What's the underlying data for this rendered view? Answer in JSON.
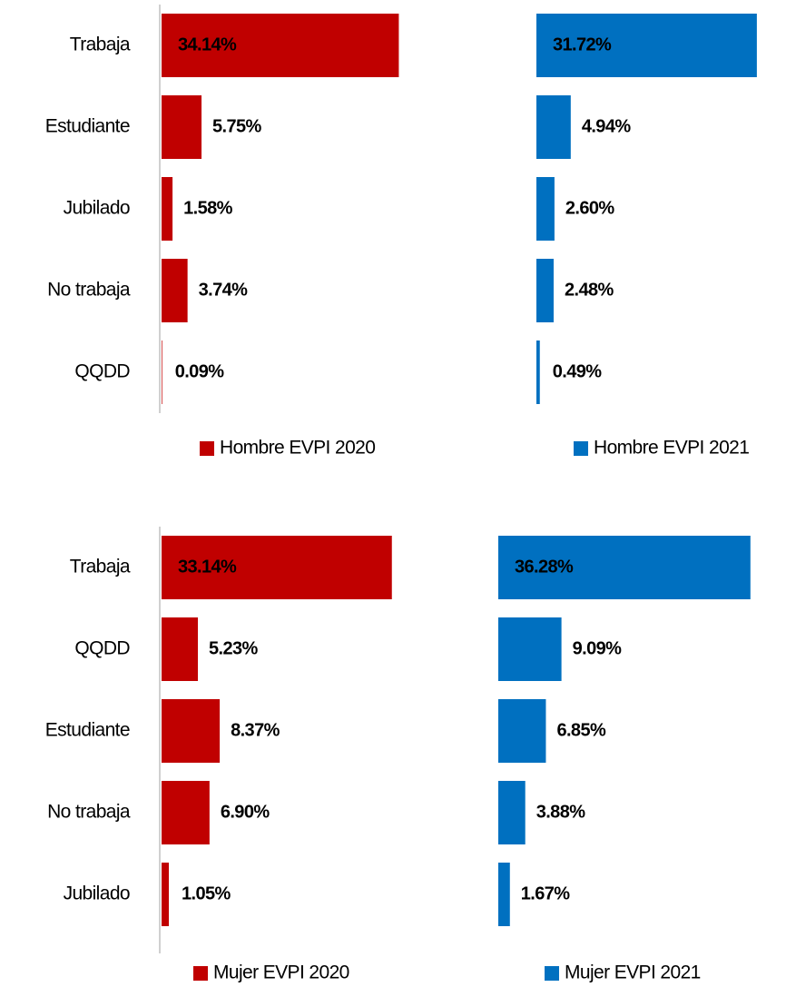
{
  "chart_data": [
    {
      "type": "bar",
      "orientation": "horizontal",
      "categories": [
        "Trabaja",
        "Estudiante",
        "Jubilado",
        "No trabaja",
        "QQDD"
      ],
      "xlim": [
        0,
        35
      ],
      "series": [
        {
          "name": "Hombre EVPI 2020",
          "color": "#c00000",
          "values": [
            34.14,
            5.75,
            1.58,
            3.74,
            0.09
          ],
          "value_labels": [
            "34.14%",
            "5.75%",
            "1.58%",
            "3.74%",
            "0.09%"
          ]
        },
        {
          "name": "Hombre EVPI 2021",
          "color": "#0070c0",
          "values": [
            31.72,
            4.94,
            2.6,
            2.48,
            0.49
          ],
          "value_labels": [
            "31.72%",
            "4.94%",
            "2.60%",
            "2.48%",
            "0.49%"
          ]
        }
      ]
    },
    {
      "type": "bar",
      "orientation": "horizontal",
      "categories": [
        "Trabaja",
        "QQDD",
        "Estudiante",
        "No trabaja",
        "Jubilado"
      ],
      "xlim": [
        0,
        35
      ],
      "series": [
        {
          "name": "Mujer EVPI 2020",
          "color": "#c00000",
          "values": [
            33.14,
            5.23,
            8.37,
            6.9,
            1.05
          ],
          "value_labels": [
            "33.14%",
            "5.23%",
            "8.37%",
            "6.90%",
            "1.05%"
          ]
        },
        {
          "name": "Mujer EVPI 2021",
          "color": "#0070c0",
          "values": [
            36.28,
            9.09,
            6.85,
            3.88,
            1.67
          ],
          "value_labels": [
            "36.28%",
            "9.09%",
            "6.85%",
            "3.88%",
            "1.67%"
          ]
        }
      ]
    }
  ]
}
